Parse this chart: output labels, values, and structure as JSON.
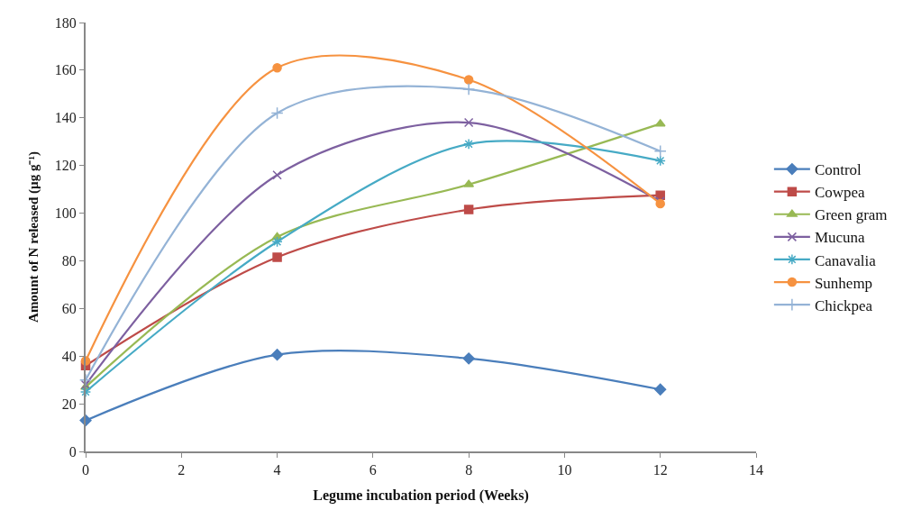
{
  "chart_data": {
    "type": "line",
    "xlabel": "Legume incubation period (Weeks)",
    "ylabel": "Amount of N released (µg g⁻¹)",
    "x": [
      0,
      4,
      8,
      12
    ],
    "xlim": [
      0,
      14
    ],
    "xticks": [
      0,
      2,
      4,
      6,
      8,
      10,
      12,
      14
    ],
    "ylim": [
      0,
      180
    ],
    "yticks": [
      0,
      20,
      40,
      60,
      80,
      100,
      120,
      140,
      160,
      180
    ],
    "legend": "right",
    "line_style": "solid",
    "series": [
      {
        "name": "Control",
        "color": "#4a7ebb",
        "marker": "diamond",
        "values": [
          13,
          40.6,
          39,
          26
        ]
      },
      {
        "name": "Cowpea",
        "color": "#be4b48",
        "marker": "square",
        "values": [
          36,
          81.5,
          101.5,
          107.5
        ]
      },
      {
        "name": "Green gram",
        "color": "#98b954",
        "marker": "triangle",
        "values": [
          27,
          90,
          112,
          137.5
        ]
      },
      {
        "name": "Mucuna",
        "color": "#7d60a0",
        "marker": "cross",
        "values": [
          28,
          116,
          138,
          105
        ]
      },
      {
        "name": "Canavalia",
        "color": "#46aac5",
        "marker": "cross",
        "values": [
          25,
          88,
          129,
          122
        ]
      },
      {
        "name": "Sunhemp",
        "color": "#f69240",
        "marker": "circle",
        "values": [
          38,
          161,
          156,
          104
        ]
      },
      {
        "name": "Chickpea",
        "color": "#94b3d6",
        "marker": "cross",
        "values": [
          30,
          142,
          152,
          126
        ]
      }
    ]
  }
}
